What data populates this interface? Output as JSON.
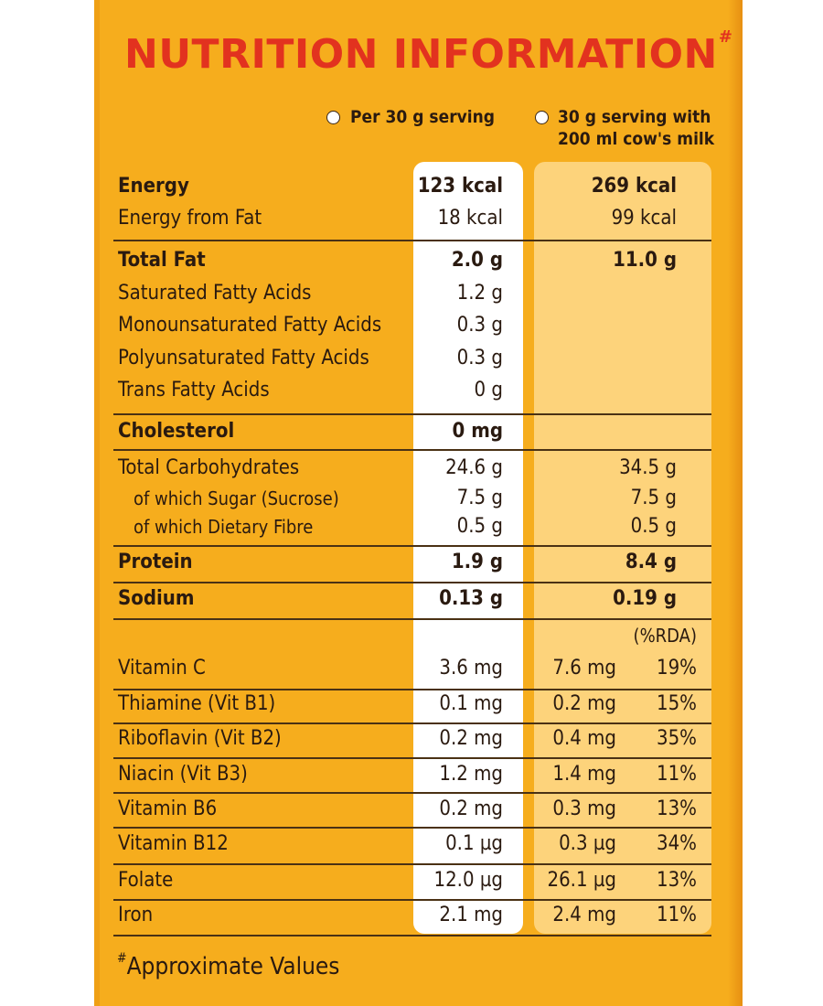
{
  "title": "NUTRITION INFORMATION",
  "title_mark": "#",
  "columns": {
    "per_serving": "Per 30 g serving",
    "with_milk_line1": "30 g serving with",
    "with_milk_line2": "200 ml cow's milk",
    "rda_header": "(%RDA)"
  },
  "energy": {
    "label": "Energy",
    "per_serving": "123 kcal",
    "with_milk": "269 kcal",
    "fat_label": "Energy from Fat",
    "fat_per_serving": "18 kcal",
    "fat_with_milk": "99 kcal"
  },
  "fat": {
    "label": "Total Fat",
    "per_serving": "2.0 g",
    "with_milk": "11.0 g",
    "sub": [
      {
        "label": "Saturated Fatty Acids",
        "per_serving": "1.2 g"
      },
      {
        "label": "Monounsaturated Fatty Acids",
        "per_serving": "0.3 g"
      },
      {
        "label": "Polyunsaturated Fatty Acids",
        "per_serving": "0.3 g"
      },
      {
        "label": "Trans Fatty Acids",
        "per_serving": "0 g"
      }
    ]
  },
  "cholesterol": {
    "label": "Cholesterol",
    "per_serving": "0 mg"
  },
  "carbs": {
    "label": "Total Carbohydrates",
    "per_serving": "24.6 g",
    "with_milk": "34.5 g",
    "sugar_label": "of which Sugar (Sucrose)",
    "sugar_per_serving": "7.5 g",
    "sugar_with_milk": "7.5 g",
    "fibre_label": "of which Dietary Fibre",
    "fibre_per_serving": "0.5 g",
    "fibre_with_milk": "0.5 g"
  },
  "protein": {
    "label": "Protein",
    "per_serving": "1.9 g",
    "with_milk": "8.4 g"
  },
  "sodium": {
    "label": "Sodium",
    "per_serving": "0.13 g",
    "with_milk": "0.19 g"
  },
  "vitamins": [
    {
      "label": "Vitamin C",
      "per_serving": "3.6 mg",
      "with_milk": "7.6 mg",
      "rda": "19%"
    },
    {
      "label": "Thiamine (Vit B1)",
      "per_serving": "0.1 mg",
      "with_milk": "0.2 mg",
      "rda": "15%"
    },
    {
      "label": "Riboflavin (Vit B2)",
      "per_serving": "0.2 mg",
      "with_milk": "0.4 mg",
      "rda": "35%"
    },
    {
      "label": "Niacin (Vit B3)",
      "per_serving": "1.2 mg",
      "with_milk": "1.4 mg",
      "rda": "11%"
    },
    {
      "label": "Vitamin B6",
      "per_serving": "0.2 mg",
      "with_milk": "0.3 mg",
      "rda": "13%"
    },
    {
      "label": "Vitamin B12",
      "per_serving": "0.1 µg",
      "with_milk": "0.3 µg",
      "rda": "34%"
    },
    {
      "label": "Folate",
      "per_serving": "12.0 µg",
      "with_milk": "26.1 µg",
      "rda": "13%"
    },
    {
      "label": "Iron",
      "per_serving": "2.1 mg",
      "with_milk": "2.4 mg",
      "rda": "11%"
    }
  ],
  "footnote_mark": "#",
  "footnote": "Approximate Values",
  "colors": {
    "background": "#f6ad1d",
    "title": "#e2321f",
    "column_white": "#ffffff",
    "column_cream": "#fdd37b",
    "text": "#2a1a10"
  }
}
